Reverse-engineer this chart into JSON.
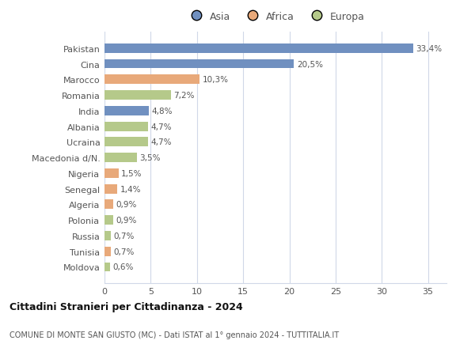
{
  "countries": [
    "Pakistan",
    "Cina",
    "Marocco",
    "Romania",
    "India",
    "Albania",
    "Ucraina",
    "Macedonia d/N.",
    "Nigeria",
    "Senegal",
    "Algeria",
    "Polonia",
    "Russia",
    "Tunisia",
    "Moldova"
  ],
  "values": [
    33.4,
    20.5,
    10.3,
    7.2,
    4.8,
    4.7,
    4.7,
    3.5,
    1.5,
    1.4,
    0.9,
    0.9,
    0.7,
    0.7,
    0.6
  ],
  "labels": [
    "33,4%",
    "20,5%",
    "10,3%",
    "7,2%",
    "4,8%",
    "4,7%",
    "4,7%",
    "3,5%",
    "1,5%",
    "1,4%",
    "0,9%",
    "0,9%",
    "0,7%",
    "0,7%",
    "0,6%"
  ],
  "continents": [
    "Asia",
    "Asia",
    "Africa",
    "Europa",
    "Asia",
    "Europa",
    "Europa",
    "Europa",
    "Africa",
    "Africa",
    "Africa",
    "Europa",
    "Europa",
    "Africa",
    "Europa"
  ],
  "colors": {
    "Asia": "#7090c0",
    "Africa": "#e8a97a",
    "Europa": "#b5c98a"
  },
  "title": "Cittadini Stranieri per Cittadinanza - 2024",
  "subtitle": "COMUNE DI MONTE SAN GIUSTO (MC) - Dati ISTAT al 1° gennaio 2024 - TUTTITALIA.IT",
  "xlim": [
    0,
    37
  ],
  "xticks": [
    0,
    5,
    10,
    15,
    20,
    25,
    30,
    35
  ],
  "background_color": "#ffffff",
  "grid_color": "#d0d8e8",
  "bar_height": 0.6
}
